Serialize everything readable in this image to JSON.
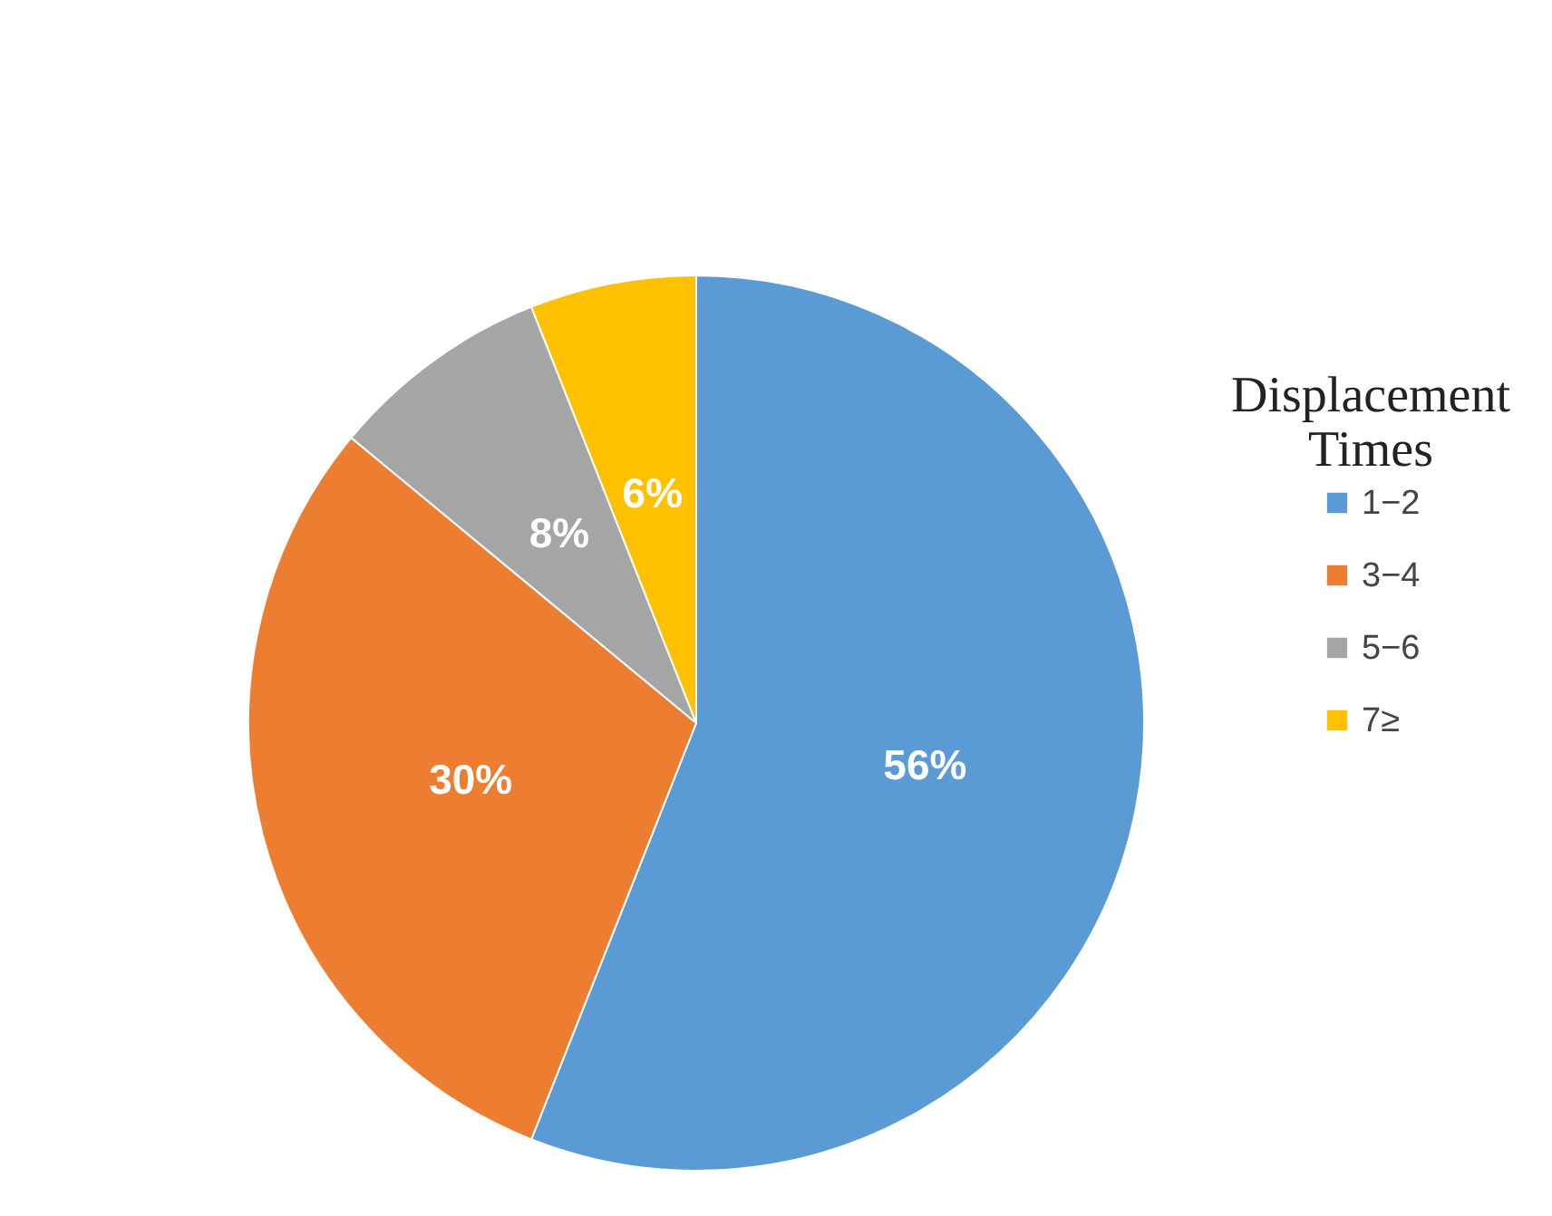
{
  "chart_data": {
    "type": "pie",
    "categories": [
      "1−2",
      "3−4",
      "5−6",
      "7≥"
    ],
    "values": [
      56,
      30,
      8,
      6
    ],
    "colors": [
      "#5b9bd5",
      "#ed7d31",
      "#a5a5a5",
      "#ffc000"
    ],
    "value_labels": [
      "56%",
      "30%",
      "8%",
      "6%"
    ],
    "legend_title": "Displacement Times",
    "legend": "right"
  }
}
